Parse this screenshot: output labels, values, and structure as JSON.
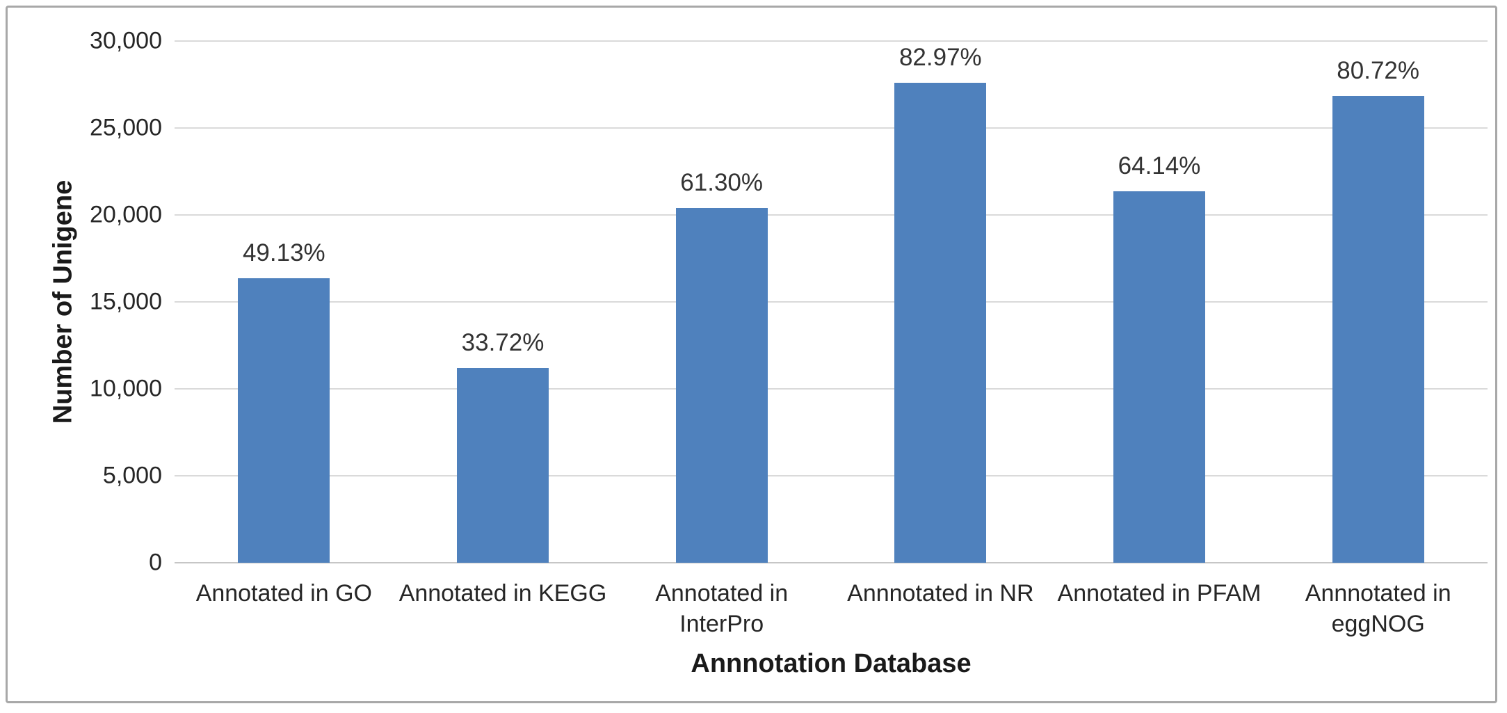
{
  "chart_data": {
    "type": "bar",
    "title": "",
    "xlabel": "Annnotation Database",
    "ylabel": "Number of Unigene",
    "categories": [
      "Annotated in GO",
      "Annotated in KEGG",
      "Annotated in InterPro",
      "Annnotated in NR",
      "Annotated in PFAM",
      "Annnotated in eggNOG"
    ],
    "series": [
      {
        "name": "Number of Unigene",
        "values": [
          16350,
          11200,
          20400,
          27600,
          21350,
          26850
        ],
        "data_labels": [
          "49.13%",
          "33.72%",
          "61.30%",
          "82.97%",
          "64.14%",
          "80.72%"
        ]
      }
    ],
    "ylim": [
      0,
      30000
    ],
    "ytick_step": 5000,
    "ytick_labels": [
      "0",
      "5,000",
      "10,000",
      "15,000",
      "20,000",
      "25,000",
      "30,000"
    ],
    "grid": "horizontal",
    "legend": "none",
    "bar_color": "#4f81bd"
  },
  "colors": {
    "bar": "#4f81bd",
    "gridline": "#dadada",
    "axis_line": "#c6c6c6",
    "frame_border": "#a8a8a8",
    "background": "#ffffff",
    "text": "#262626"
  }
}
